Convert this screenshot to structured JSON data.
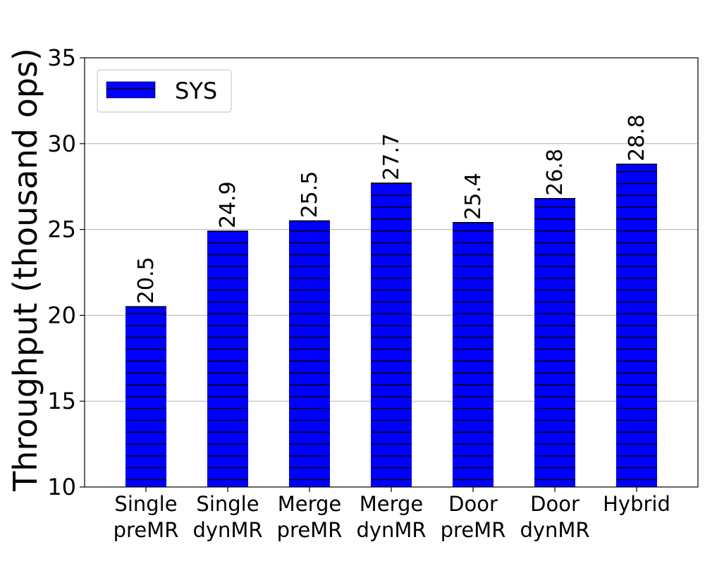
{
  "chart_data": {
    "type": "bar",
    "categories": [
      [
        "Single",
        "preMR"
      ],
      [
        "Single",
        "dynMR"
      ],
      [
        "Merge",
        "preMR"
      ],
      [
        "Merge",
        "dynMR"
      ],
      [
        "Door",
        "preMR"
      ],
      [
        "Door",
        "dynMR"
      ],
      [
        "Hybrid"
      ]
    ],
    "series": [
      {
        "name": "SYS",
        "values": [
          20.5,
          24.9,
          25.5,
          27.7,
          25.4,
          26.8,
          28.8
        ],
        "labels": [
          "20.5",
          "24.9",
          "25.5",
          "27.7",
          "25.4",
          "26.8",
          "28.8"
        ],
        "color": "#0000ff",
        "hatch": "horizontal-lines"
      }
    ],
    "ylabel": "Throughput (thousand ops)",
    "ylim": [
      10,
      35
    ],
    "yticks": [
      "10",
      "15",
      "20",
      "25",
      "30",
      "35"
    ],
    "grid": "y",
    "legend_position": "top-left"
  }
}
